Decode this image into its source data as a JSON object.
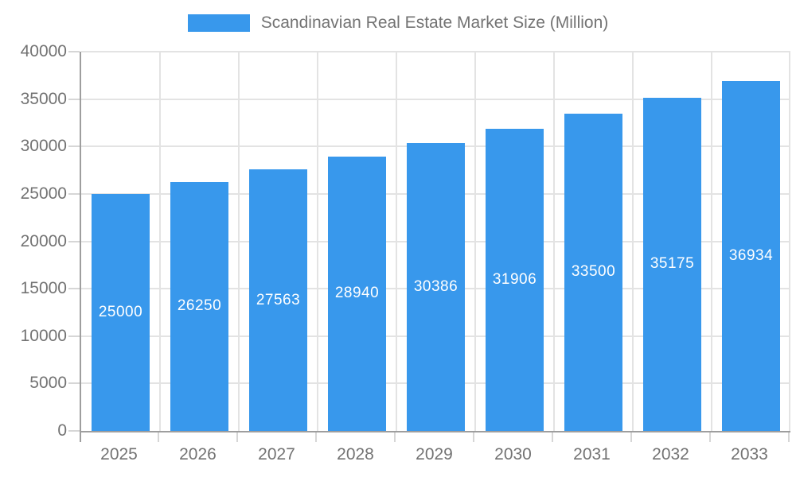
{
  "chart_data": {
    "type": "bar",
    "title": "Scandinavian Real Estate Market Size (Million)",
    "categories": [
      "2025",
      "2026",
      "2027",
      "2028",
      "2029",
      "2030",
      "2031",
      "2032",
      "2033"
    ],
    "values": [
      25000,
      26250,
      27563,
      28940,
      30386,
      31906,
      33500,
      35175,
      36934
    ],
    "value_labels": [
      "25000",
      "26250",
      "27563",
      "28940",
      "30386",
      "31906",
      "33500",
      "35175",
      "36934"
    ],
    "xlabel": "",
    "ylabel": "",
    "ylim": [
      0,
      40000
    ],
    "yticks": [
      0,
      5000,
      10000,
      15000,
      20000,
      25000,
      30000,
      35000,
      40000
    ],
    "ytick_labels": [
      "0",
      "5000",
      "10000",
      "15000",
      "20000",
      "25000",
      "30000",
      "35000",
      "40000"
    ],
    "grid": "on",
    "legend_position": "top-center",
    "bar_width_fraction": 0.74,
    "colors": {
      "bar": "#3898EC",
      "bar_value_text": "#FFFFFF",
      "gridline": "#E3E3E3",
      "axis_line": "#9E9E9E",
      "tick_mark": "#D6D6D6",
      "axis_text": "#737373",
      "background": "#FFFFFF"
    }
  }
}
